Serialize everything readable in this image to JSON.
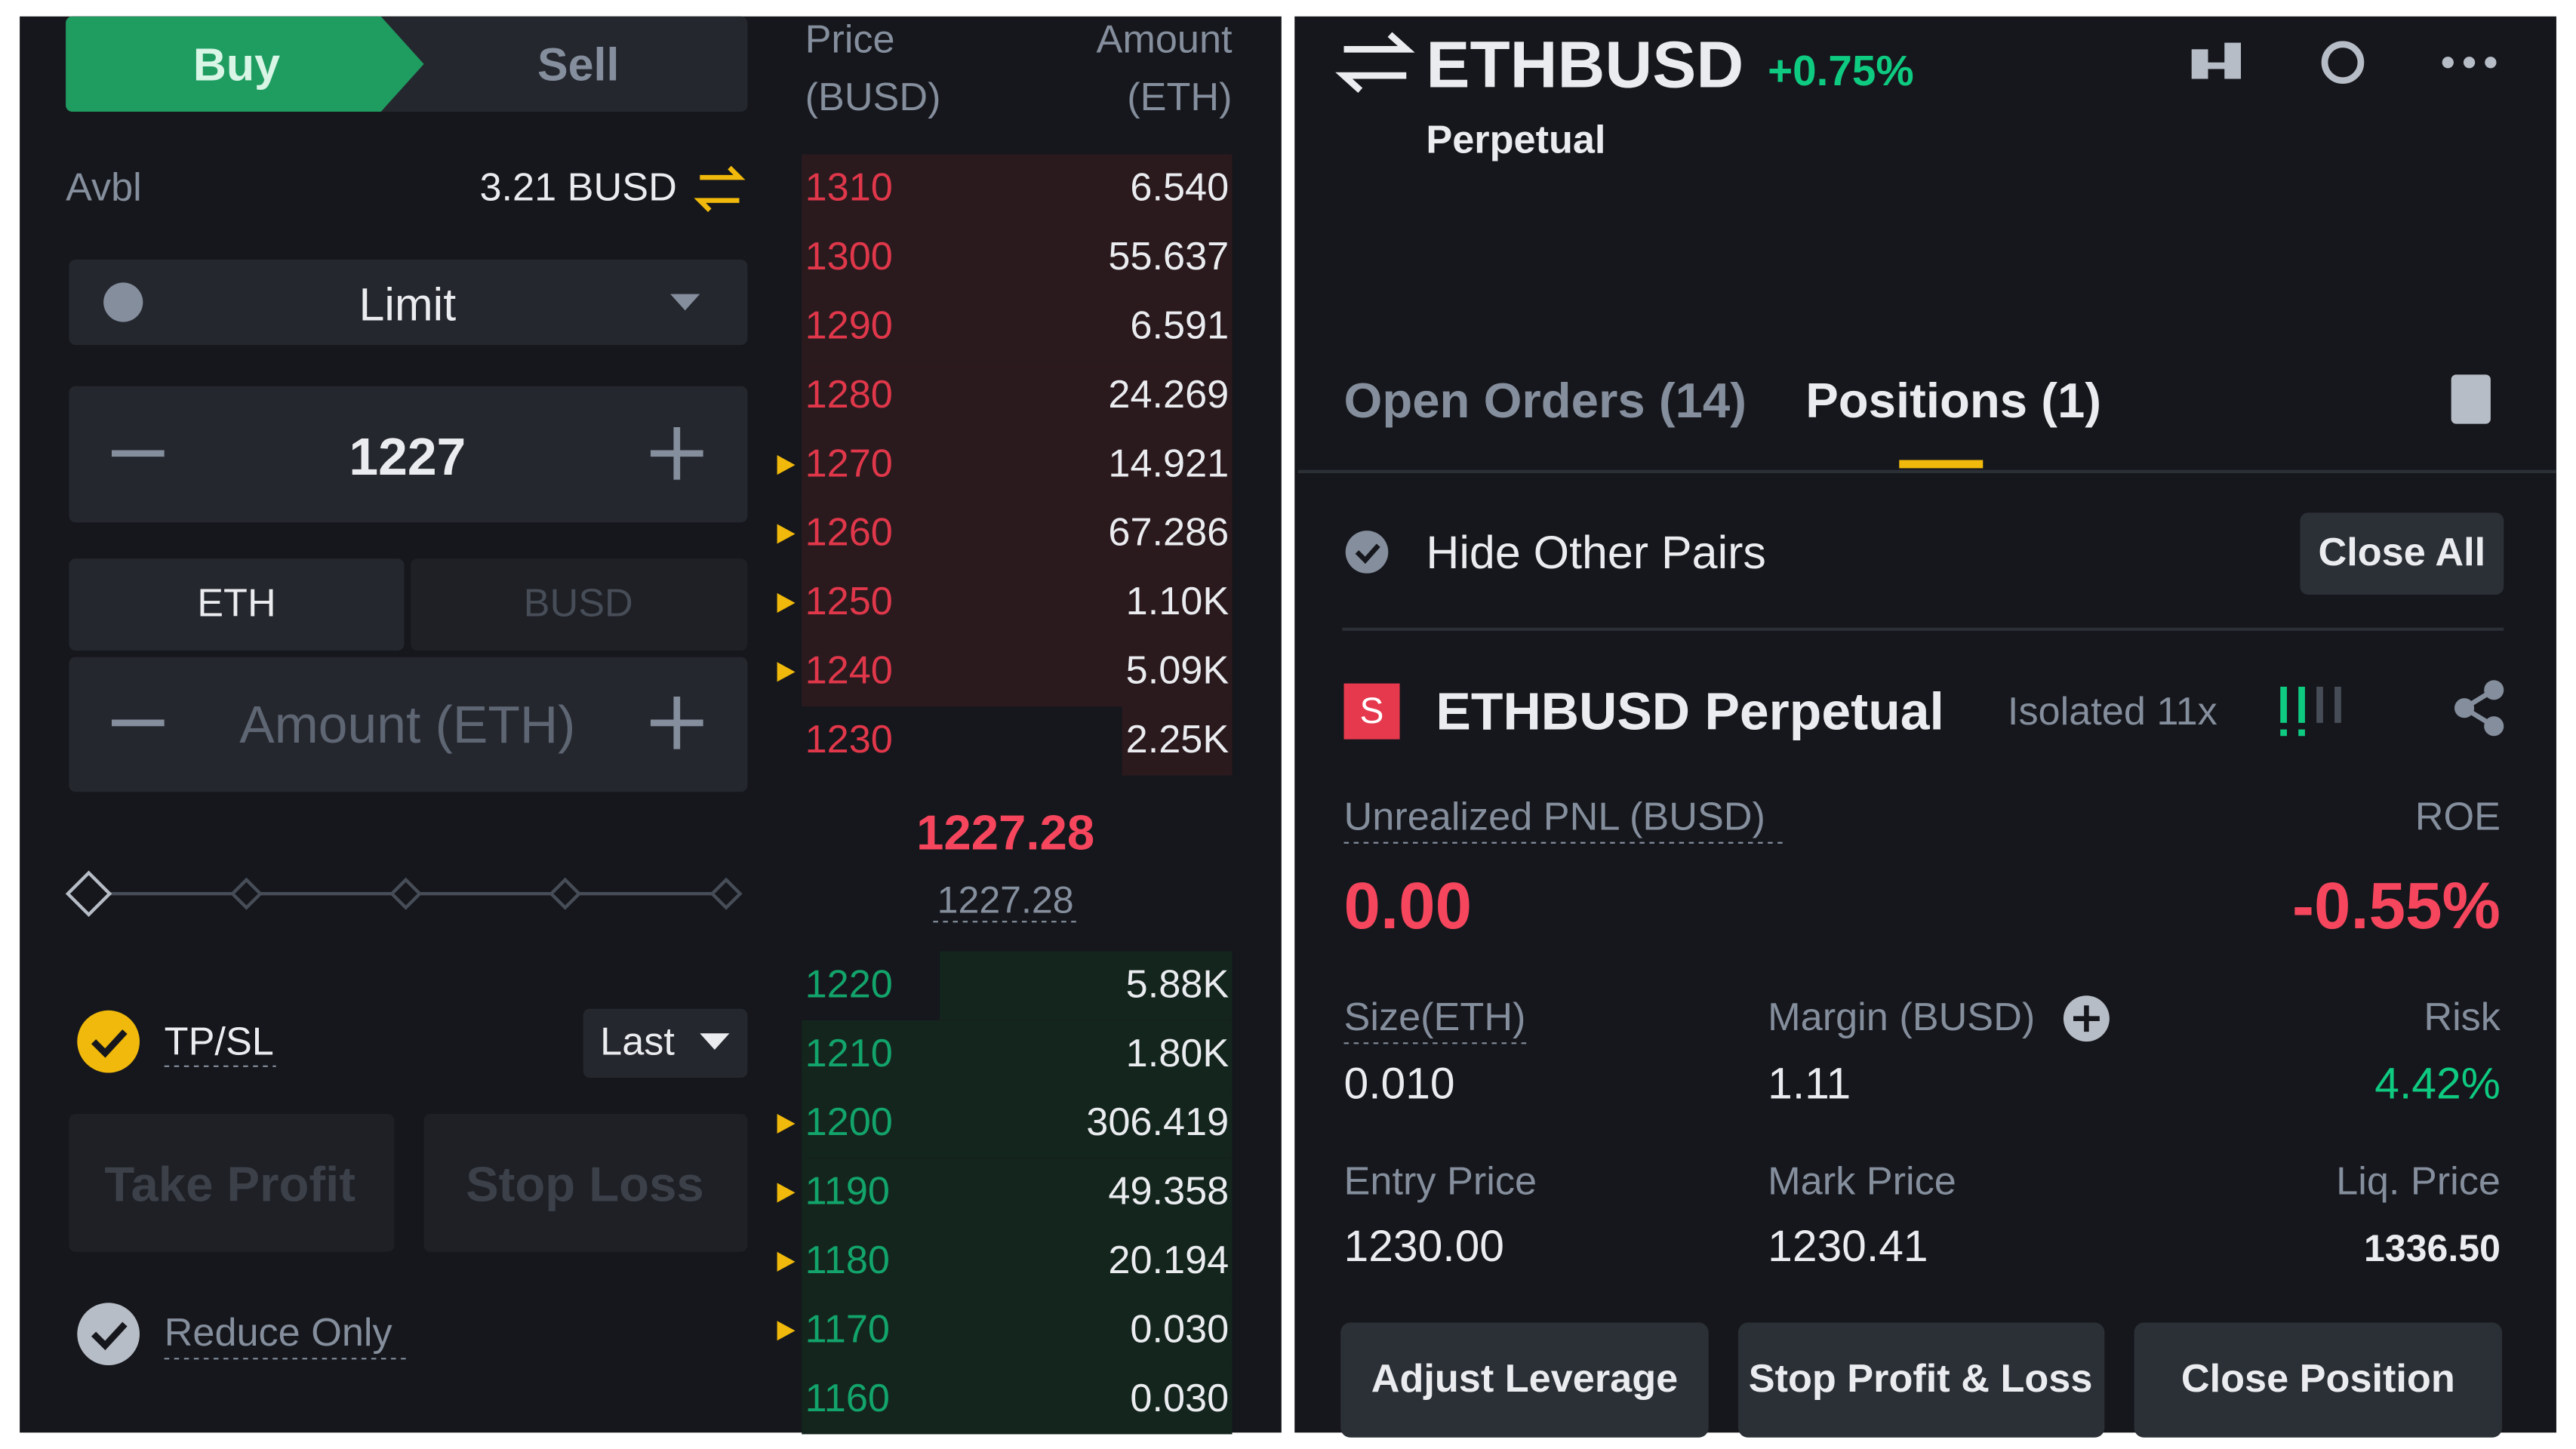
{
  "order_form": {
    "tabs": [
      "Buy",
      "Sell"
    ],
    "avbl_label": "Avbl",
    "avbl_value": "3.21 BUSD",
    "order_type": "Limit",
    "price": "1227",
    "units": [
      "ETH",
      "BUSD"
    ],
    "amount_placeholder": "Amount (ETH)",
    "tpsl_label": "TP/SL",
    "tpsl_trigger": "Last",
    "take_profit": "Take Profit",
    "stop_loss": "Stop Loss",
    "reduce_only": "Reduce Only"
  },
  "order_book": {
    "price_header": [
      "Price",
      "(BUSD)"
    ],
    "amount_header": [
      "Amount",
      "(ETH)"
    ],
    "asks": [
      {
        "price": "1310",
        "amount": "6.540",
        "marked": false
      },
      {
        "price": "1300",
        "amount": "55.637",
        "marked": false
      },
      {
        "price": "1290",
        "amount": "6.591",
        "marked": false
      },
      {
        "price": "1280",
        "amount": "24.269",
        "marked": false
      },
      {
        "price": "1270",
        "amount": "14.921",
        "marked": true
      },
      {
        "price": "1260",
        "amount": "67.286",
        "marked": true
      },
      {
        "price": "1250",
        "amount": "1.10K",
        "marked": true
      },
      {
        "price": "1240",
        "amount": "5.09K",
        "marked": true
      },
      {
        "price": "1230",
        "amount": "2.25K",
        "marked": false
      }
    ],
    "last_price": "1227.28",
    "mark_price": "1227.28",
    "bids": [
      {
        "price": "1220",
        "amount": "5.88K",
        "marked": false
      },
      {
        "price": "1210",
        "amount": "1.80K",
        "marked": false
      },
      {
        "price": "1200",
        "amount": "306.419",
        "marked": true
      },
      {
        "price": "1190",
        "amount": "49.358",
        "marked": true
      },
      {
        "price": "1180",
        "amount": "20.194",
        "marked": true
      },
      {
        "price": "1170",
        "amount": "0.030",
        "marked": true
      },
      {
        "price": "1160",
        "amount": "0.030",
        "marked": false
      }
    ]
  },
  "position_panel": {
    "symbol": "ETHBUSD",
    "change": "+0.75%",
    "contract": "Perpetual",
    "tabs": [
      "Open Orders (14)",
      "Positions (1)"
    ],
    "hide_other_pairs": "Hide Other Pairs",
    "close_all": "Close All",
    "side": "S",
    "position_name": "ETHBUSD Perpetual",
    "margin_mode": "Isolated 11x",
    "unrealized_pnl_label": "Unrealized PNL (BUSD)",
    "roe_label": "ROE",
    "unrealized_pnl": "0.00",
    "roe": "-0.55%",
    "size_label": "Size(ETH)",
    "margin_label": "Margin (BUSD)",
    "risk_label": "Risk",
    "size": "0.010",
    "margin": "1.11",
    "risk": "4.42%",
    "entry_price_label": "Entry Price",
    "mark_price_label": "Mark Price",
    "liq_price_label": "Liq. Price",
    "entry_price": "1230.00",
    "mark_price": "1230.41",
    "liq_price": "1336.50",
    "buttons": [
      "Adjust Leverage",
      "Stop Profit & Loss",
      "Close Position"
    ]
  }
}
